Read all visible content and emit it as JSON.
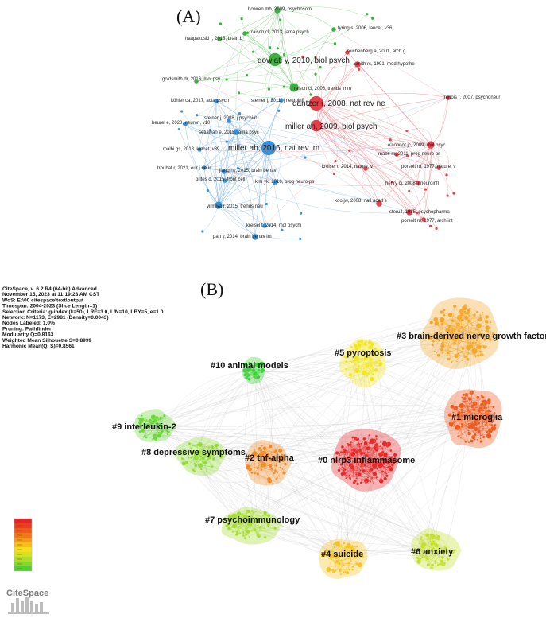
{
  "panels": [
    {
      "label": "(A)"
    },
    {
      "label": "(B)"
    }
  ],
  "colors": {
    "green": "#3cae3c",
    "blue": "#3a8fd6",
    "red": "#e5404a",
    "edge_green": "#8fd38f",
    "edge_blue": "#8cbbe6",
    "edge_red": "#ef9aa0"
  },
  "network_a": {
    "nodes": [
      {
        "label": "howren mb, 2009, psychosom",
        "group": "green",
        "size": 3,
        "big": false
      },
      {
        "label": "raison cl, 2013, jama psych",
        "group": "green",
        "size": 2,
        "big": false
      },
      {
        "label": "tyring s, 2006, lancet, v36",
        "group": "green",
        "size": 2,
        "big": false
      },
      {
        "label": "haapakoski r, 2015, brain b",
        "group": "green",
        "size": 2,
        "big": false
      },
      {
        "label": "reichenberg a, 2001, arch g",
        "group": "red",
        "size": 2,
        "big": false
      },
      {
        "label": "dowlati y, 2010, biol psych",
        "group": "green",
        "size": 8,
        "big": true
      },
      {
        "label": "smith rs, 1991, med hypothe",
        "group": "red",
        "size": 3,
        "big": false
      },
      {
        "label": "goldsmith dr, 2016, mol psy",
        "group": "green",
        "size": 2,
        "big": false
      },
      {
        "label": "raison cl, 2006, trends imm",
        "group": "green",
        "size": 5,
        "big": false
      },
      {
        "label": "frenois f, 2007, psychoneur",
        "group": "red",
        "size": 2,
        "big": false
      },
      {
        "label": "köhler ca, 2017, acta psych",
        "group": "blue",
        "size": 2,
        "big": false
      },
      {
        "label": "steiner j, 2011, j neuroinfl",
        "group": "blue",
        "size": 2,
        "big": false
      },
      {
        "label": "dantzer r, 2008, nat rev ne",
        "group": "red",
        "size": 9,
        "big": true
      },
      {
        "label": "steiner j, 2008, j psychiat",
        "group": "blue",
        "size": 2,
        "big": false
      },
      {
        "label": "miller ah, 2009, biol psych",
        "group": "red",
        "size": 7,
        "big": true
      },
      {
        "label": "beurel e, 2020, neuron, v10",
        "group": "blue",
        "size": 2,
        "big": false
      },
      {
        "label": "setiawan e, 2015, jama psyc",
        "group": "blue",
        "size": 3,
        "big": false
      },
      {
        "label": "o'connor jc, 2009, mol psyc",
        "group": "red",
        "size": 4,
        "big": false
      },
      {
        "label": "maes m, 2011, prog neuro-ps",
        "group": "red",
        "size": 2,
        "big": false
      },
      {
        "label": "miller ah, 2016, nat rev im",
        "group": "blue",
        "size": 9,
        "big": true
      },
      {
        "label": "malhi gs, 2018, lancet, v39",
        "group": "blue",
        "size": 2,
        "big": false
      },
      {
        "label": "troubat r, 2021, eur j neur",
        "group": "blue",
        "size": 2,
        "big": false
      },
      {
        "label": "jiang hy, 2015, brain behav",
        "group": "blue",
        "size": 2,
        "big": false
      },
      {
        "label": "kreisel t, 2014, nature, v",
        "group": "red",
        "size": 2,
        "big": false
      },
      {
        "label": "porsolt rd, 1977, nature, v",
        "group": "red",
        "size": 2,
        "big": false
      },
      {
        "label": "brites d, 2015, front cell",
        "group": "blue",
        "size": 2,
        "big": false
      },
      {
        "label": "kim yk, 2016, prog neuro-ps",
        "group": "blue",
        "size": 2,
        "big": false
      },
      {
        "label": "henry cj, 2008, j neuroinfl",
        "group": "red",
        "size": 2,
        "big": false
      },
      {
        "label": "yirmiya r, 2015, trends neu",
        "group": "blue",
        "size": 4,
        "big": false
      },
      {
        "label": "koo jw, 2008, natl acad s",
        "group": "red",
        "size": 3,
        "big": false
      },
      {
        "label": "steru l, 1985, psychopharma",
        "group": "red",
        "size": 3,
        "big": false
      },
      {
        "label": "porsolt rd, 1977, arch int",
        "group": "red",
        "size": 2,
        "big": false
      },
      {
        "label": "kreisel t, 2014, mol psychi",
        "group": "blue",
        "size": 2,
        "big": false
      },
      {
        "label": "pan y, 2014, brain behav im",
        "group": "blue",
        "size": 3,
        "big": false
      }
    ]
  },
  "citespace_meta": [
    "CiteSpace, v. 6.2.R4 (64-bit) Advanced",
    "November 15, 2023 at 11:19:28 AM CST",
    "WoS: E:\\00 citespace\\text\\output",
    "Timespan: 2004-2023 (Slice Length=1)",
    "Selection Criteria: g-index (k=50), LRF=3.0, L/N=10, LBY=5, e=1.0",
    "Network: N=1173, E=2981 (Density=0.0043)",
    "Nodes Labeled: 1.0%",
    "Pruning: Pathfinder",
    "Modularity Q=0.8163",
    "Weighted Mean Silhouette S=0.8999",
    "Harmonic Mean(Q, S)=0.8561"
  ],
  "clusters": [
    {
      "label": "#0 nlrp3 inflammasome",
      "color": "#e82828",
      "nodes": 160
    },
    {
      "label": "#1 microglia",
      "color": "#f05a1e",
      "nodes": 140
    },
    {
      "label": "#2 tnf-alpha",
      "color": "#f28a24",
      "nodes": 70
    },
    {
      "label": "#3 brain-derived nerve growth factor",
      "color": "#f4a72a",
      "nodes": 150
    },
    {
      "label": "#4 suicide",
      "color": "#f6c21f",
      "nodes": 70
    },
    {
      "label": "#5 pyroptosis",
      "color": "#f3e61e",
      "nodes": 70
    },
    {
      "label": "#6 anxiety",
      "color": "#c4e02a",
      "nodes": 80
    },
    {
      "label": "#7 psychoimmunology",
      "color": "#a6dc32",
      "nodes": 80
    },
    {
      "label": "#8 depressive symptoms",
      "color": "#90dc34",
      "nodes": 60
    },
    {
      "label": "#9 interleukin-2",
      "color": "#6ad837",
      "nodes": 50
    },
    {
      "label": "#10 animal models",
      "color": "#3fd13a",
      "nodes": 35
    }
  ],
  "legend": {
    "colors": [
      "#e8222a",
      "#ec3d22",
      "#ef5a1e",
      "#f2761c",
      "#f59a1c",
      "#f7be1b",
      "#f5df1c",
      "#d7e21f",
      "#afdc28",
      "#84d62e",
      "#52cf35"
    ]
  },
  "logo": {
    "text": "CiteSpace",
    "color": "#8a8a8a"
  }
}
